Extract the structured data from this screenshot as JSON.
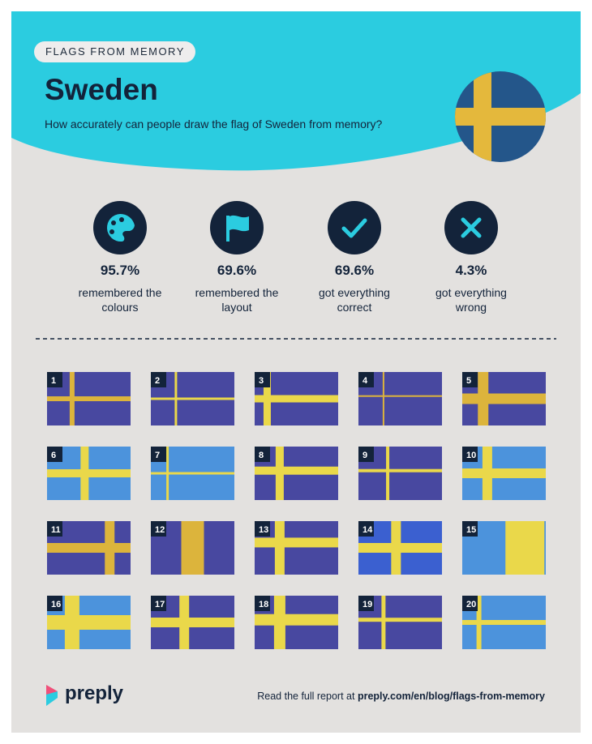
{
  "header": {
    "tag": "FLAGS FROM MEMORY",
    "title": "Sweden",
    "subtitle": "How accurately can people draw the flag of Sweden from memory?"
  },
  "stats": [
    {
      "value": "95.7%",
      "label": "remembered the colours"
    },
    {
      "value": "69.6%",
      "label": "remembered the layout"
    },
    {
      "value": "69.6%",
      "label": "got everything correct"
    },
    {
      "value": "4.3%",
      "label": "got everything wrong"
    }
  ],
  "flags": [
    1,
    2,
    3,
    4,
    5,
    6,
    7,
    8,
    9,
    10,
    11,
    12,
    13,
    14,
    15,
    16,
    17,
    18,
    19,
    20
  ],
  "footer": {
    "logo": "preply",
    "text": "Read the full report at",
    "link": "preply.com/en/blog/flags-from-memory"
  }
}
